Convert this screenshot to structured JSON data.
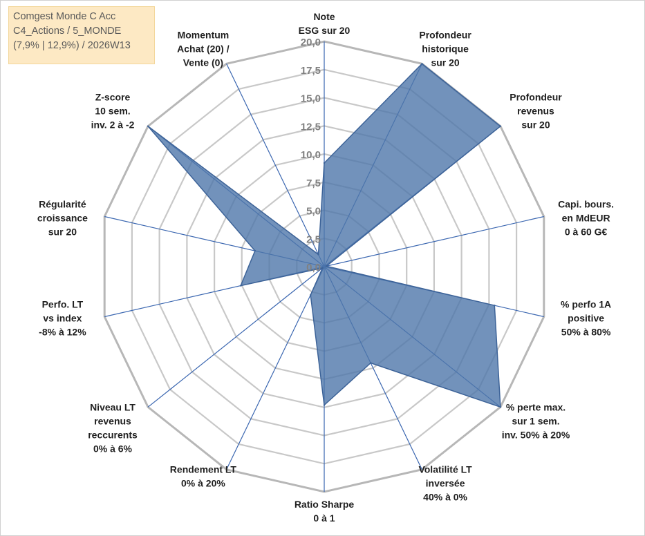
{
  "title_box": {
    "line1": "Comgest Monde C Acc",
    "line2": "C4_Actions / 5_MONDE",
    "line3": "(7,9% | 12,9%) / 2026W13",
    "bg_color": "#fde9c4"
  },
  "chart_data": {
    "type": "radar",
    "title": "Comgest Monde C Acc",
    "rmin": 0,
    "rmax": 20,
    "ticks": [
      "0,0",
      "2,5",
      "5,0",
      "7,5",
      "10,0",
      "12,5",
      "15,0",
      "17,5",
      "20,0"
    ],
    "tick_values": [
      0,
      2.5,
      5,
      7.5,
      10,
      12.5,
      15,
      17.5,
      20
    ],
    "axes": [
      {
        "label": [
          "Note",
          "ESG sur 20"
        ]
      },
      {
        "label": [
          "Profondeur",
          "historique",
          "sur 20"
        ]
      },
      {
        "label": [
          "Profondeur",
          "revenus",
          "sur 20"
        ]
      },
      {
        "label": [
          "Capi. bours.",
          "en MdEUR",
          "0 à 60 G€"
        ]
      },
      {
        "label": [
          "% perfo 1A",
          "positive",
          "50% à 80%"
        ]
      },
      {
        "label": [
          "% perte max.",
          "sur 1 sem.",
          "inv. 50% à 20%"
        ]
      },
      {
        "label": [
          "Volatilité LT",
          "inversée",
          "40% à 0%"
        ]
      },
      {
        "label": [
          "Ratio Sharpe",
          "0 à 1"
        ]
      },
      {
        "label": [
          "Rendement LT",
          "0% à 20%"
        ]
      },
      {
        "label": [
          "Niveau LT",
          "revenus",
          "reccurents",
          "0% à 6%"
        ]
      },
      {
        "label": [
          "Perfo. LT",
          "vs index",
          "-8% à 12%"
        ]
      },
      {
        "label": [
          "Régularité",
          "croissance",
          "sur 20"
        ]
      },
      {
        "label": [
          "Z-score",
          "10 sem.",
          "inv. 2 à -2"
        ]
      },
      {
        "label": [
          "Momentum",
          "Achat (20) /",
          "Vente (0)"
        ]
      }
    ],
    "series": [
      {
        "name": "Comgest Monde C Acc",
        "values": [
          9.2,
          20,
          20,
          0.2,
          15.5,
          20,
          9.5,
          12.3,
          2.8,
          0.2,
          7.6,
          6.3,
          20,
          1.2
        ],
        "fill": "#4f77aa",
        "fill_opacity": 0.8,
        "stroke": "#3d6398"
      }
    ],
    "grid_color": "#c8c8c8",
    "outer_ring_color": "#b7b7b7",
    "spoke_color": "#3a66b0"
  }
}
